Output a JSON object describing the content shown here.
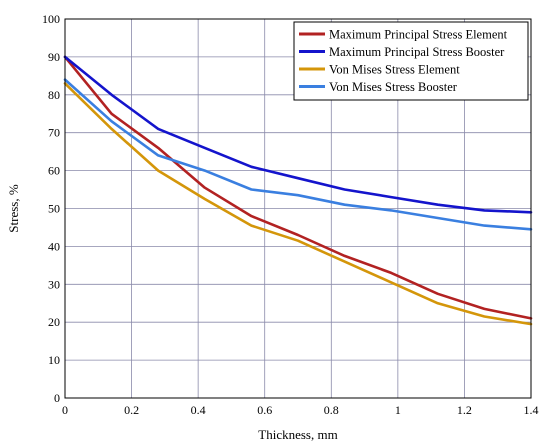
{
  "chart_data": {
    "type": "line",
    "title": "",
    "xlabel": "Thickness, mm",
    "ylabel": "Stress, %",
    "xlim": [
      0,
      1.4
    ],
    "ylim": [
      0,
      100
    ],
    "x_ticks": [
      "0",
      "0.2",
      "0.4",
      "0.6",
      "0.8",
      "1",
      "1.2",
      "1.4"
    ],
    "y_ticks": [
      "0",
      "10",
      "20",
      "30",
      "40",
      "50",
      "60",
      "70",
      "80",
      "90",
      "100"
    ],
    "grid": true,
    "legend_position": "top-right",
    "series": [
      {
        "name": "Maximum Principal Stress Element",
        "color": "#b22222",
        "x": [
          0,
          0.14,
          0.28,
          0.42,
          0.56,
          0.7,
          0.84,
          0.98,
          1.12,
          1.26,
          1.4
        ],
        "y": [
          90,
          75,
          66,
          55.5,
          48,
          43,
          37.5,
          33,
          27.5,
          23.5,
          21
        ]
      },
      {
        "name": "Maximum Principal Stress Booster",
        "color": "#1414cc",
        "x": [
          0,
          0.14,
          0.28,
          0.42,
          0.56,
          0.7,
          0.84,
          0.98,
          1.12,
          1.26,
          1.4
        ],
        "y": [
          90,
          80,
          71,
          66,
          61,
          58,
          55,
          53,
          51,
          49.5,
          49
        ]
      },
      {
        "name": "Von Mises Stress Element",
        "color": "#d4960a",
        "x": [
          0,
          0.14,
          0.28,
          0.42,
          0.56,
          0.7,
          0.84,
          0.98,
          1.12,
          1.26,
          1.4
        ],
        "y": [
          83,
          71,
          60,
          52.5,
          45.5,
          41.5,
          36,
          30.5,
          25,
          21.5,
          19.5
        ]
      },
      {
        "name": "Von Mises Stress Booster",
        "color": "#3a7fe0",
        "x": [
          0,
          0.14,
          0.28,
          0.42,
          0.56,
          0.7,
          0.84,
          0.98,
          1.12,
          1.26,
          1.4
        ],
        "y": [
          84,
          73,
          64,
          60,
          55,
          53.5,
          51,
          49.5,
          47.5,
          45.5,
          44.5
        ]
      }
    ]
  }
}
